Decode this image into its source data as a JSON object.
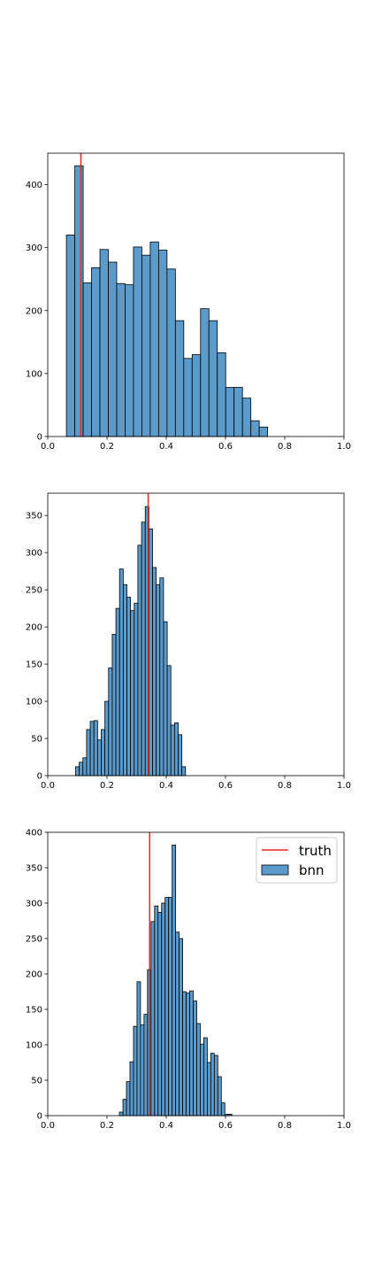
{
  "chart_data": [
    {
      "type": "histogram",
      "xlim": [
        0.0,
        1.0
      ],
      "ylim": [
        0,
        450
      ],
      "x_ticks": [
        "0.0",
        "0.2",
        "0.4",
        "0.6",
        "0.8",
        "1.0"
      ],
      "y_ticks": [
        {
          "value": 0,
          "label": "0"
        },
        {
          "value": 100,
          "label": "100"
        },
        {
          "value": 200,
          "label": "200"
        },
        {
          "value": 300,
          "label": "300"
        },
        {
          "value": 400,
          "label": "400"
        }
      ],
      "bin_start": 0.063,
      "bin_width": 0.0283,
      "counts": [
        320,
        430,
        244,
        268,
        297,
        277,
        243,
        241,
        301,
        288,
        309,
        296,
        266,
        184,
        124,
        130,
        203,
        184,
        133,
        78,
        78,
        61,
        25,
        15
      ],
      "truth_line": 0.112,
      "bar_color": "#5a9bcc",
      "line_color": "#e8281f"
    },
    {
      "type": "histogram",
      "xlim": [
        0.0,
        1.0
      ],
      "ylim": [
        0,
        380
      ],
      "x_ticks": [
        "0.0",
        "0.2",
        "0.4",
        "0.6",
        "0.8",
        "1.0"
      ],
      "y_ticks": [
        {
          "value": 0,
          "label": "0"
        },
        {
          "value": 50,
          "label": "50"
        },
        {
          "value": 100,
          "label": "100"
        },
        {
          "value": 150,
          "label": "150"
        },
        {
          "value": 200,
          "label": "200"
        },
        {
          "value": 250,
          "label": "250"
        },
        {
          "value": 300,
          "label": "300"
        },
        {
          "value": 350,
          "label": "350"
        }
      ],
      "bin_start": 0.094,
      "bin_width": 0.01237,
      "counts": [
        12,
        18,
        24,
        62,
        73,
        74,
        48,
        62,
        100,
        145,
        190,
        225,
        278,
        257,
        240,
        222,
        232,
        310,
        341,
        362,
        332,
        280,
        257,
        266,
        207,
        148,
        68,
        71,
        55,
        12
      ],
      "truth_line": 0.339,
      "bar_color": "#5a9bcc",
      "line_color": "#e8281f"
    },
    {
      "type": "histogram",
      "xlim": [
        0.0,
        1.0
      ],
      "ylim": [
        0,
        400
      ],
      "x_ticks": [
        "0.0",
        "0.2",
        "0.4",
        "0.6",
        "0.8",
        "1.0"
      ],
      "y_ticks": [
        {
          "value": 0,
          "label": "0"
        },
        {
          "value": 50,
          "label": "50"
        },
        {
          "value": 100,
          "label": "100"
        },
        {
          "value": 150,
          "label": "150"
        },
        {
          "value": 200,
          "label": "200"
        },
        {
          "value": 250,
          "label": "250"
        },
        {
          "value": 300,
          "label": "300"
        },
        {
          "value": 350,
          "label": "350"
        },
        {
          "value": 400,
          "label": "400"
        }
      ],
      "bin_start": 0.242,
      "bin_width": 0.01186,
      "counts": [
        5,
        23,
        48,
        76,
        126,
        189,
        128,
        143,
        206,
        274,
        296,
        287,
        300,
        308,
        308,
        382,
        259,
        250,
        175,
        173,
        176,
        162,
        130,
        101,
        110,
        75,
        88,
        85,
        55,
        18,
        2,
        2
      ],
      "truth_line": 0.344,
      "bar_color": "#5a9bcc",
      "line_color": "#e8281f",
      "legend": {
        "position": "upper right",
        "entries": [
          "truth",
          "bnn"
        ]
      }
    }
  ]
}
